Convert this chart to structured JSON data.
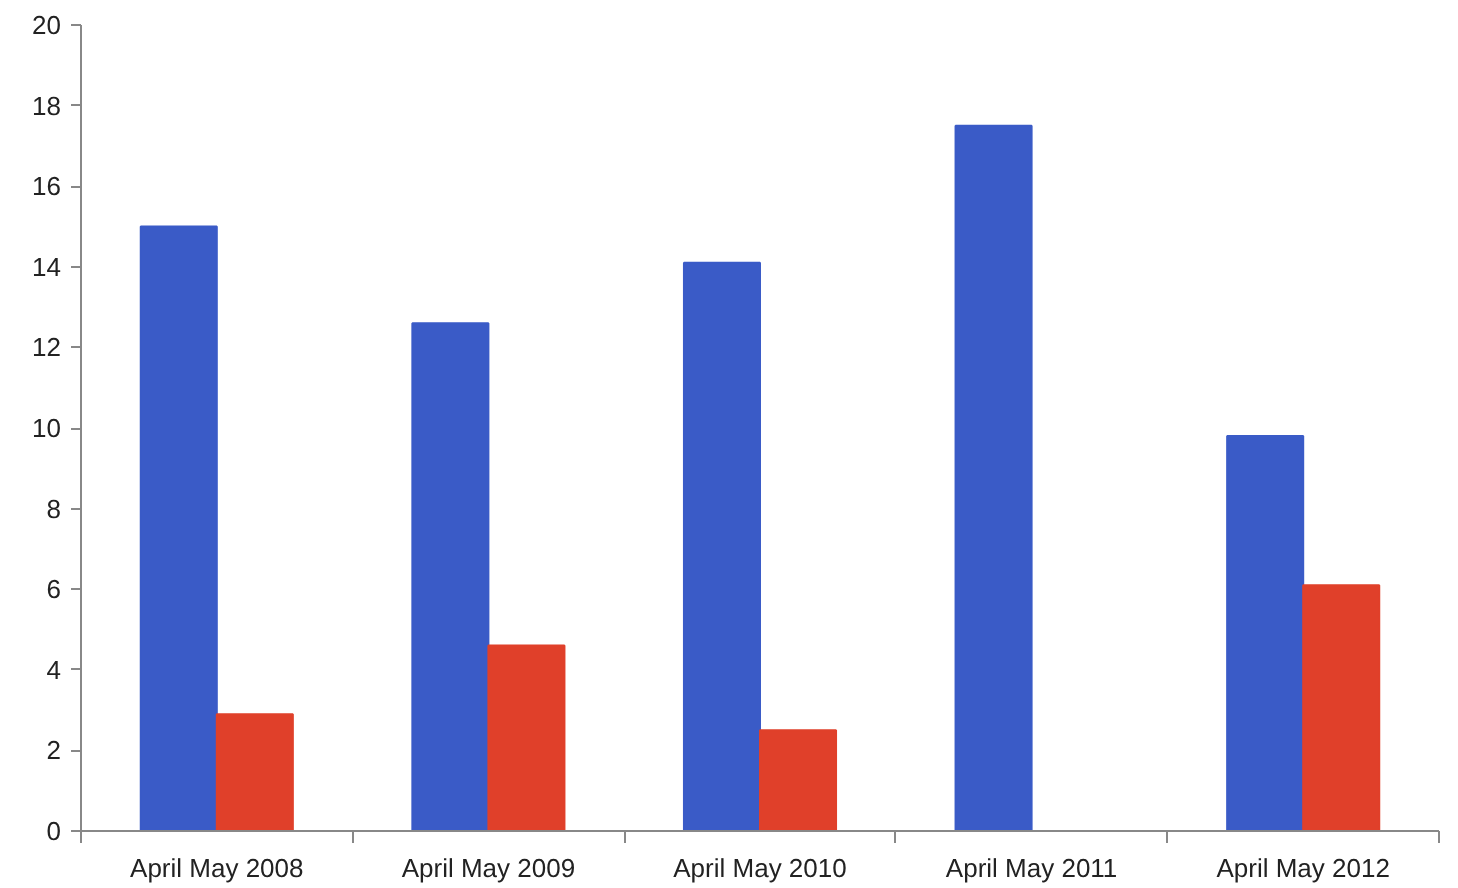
{
  "chart_data": {
    "type": "bar",
    "categories": [
      "April May 2008",
      "April May 2009",
      "April May 2010",
      "April May 2011",
      "April May 2012"
    ],
    "series": [
      {
        "color": "#3a5bc7",
        "values": [
          15,
          12.6,
          14.1,
          17.5,
          9.8
        ]
      },
      {
        "color": "#e0402a",
        "values": [
          2.9,
          4.6,
          2.5,
          null,
          6.1
        ]
      }
    ],
    "ylim": [
      0,
      20
    ],
    "yticks": [
      0,
      2,
      4,
      6,
      8,
      10,
      12,
      14,
      16,
      18,
      20
    ],
    "grid": false
  }
}
